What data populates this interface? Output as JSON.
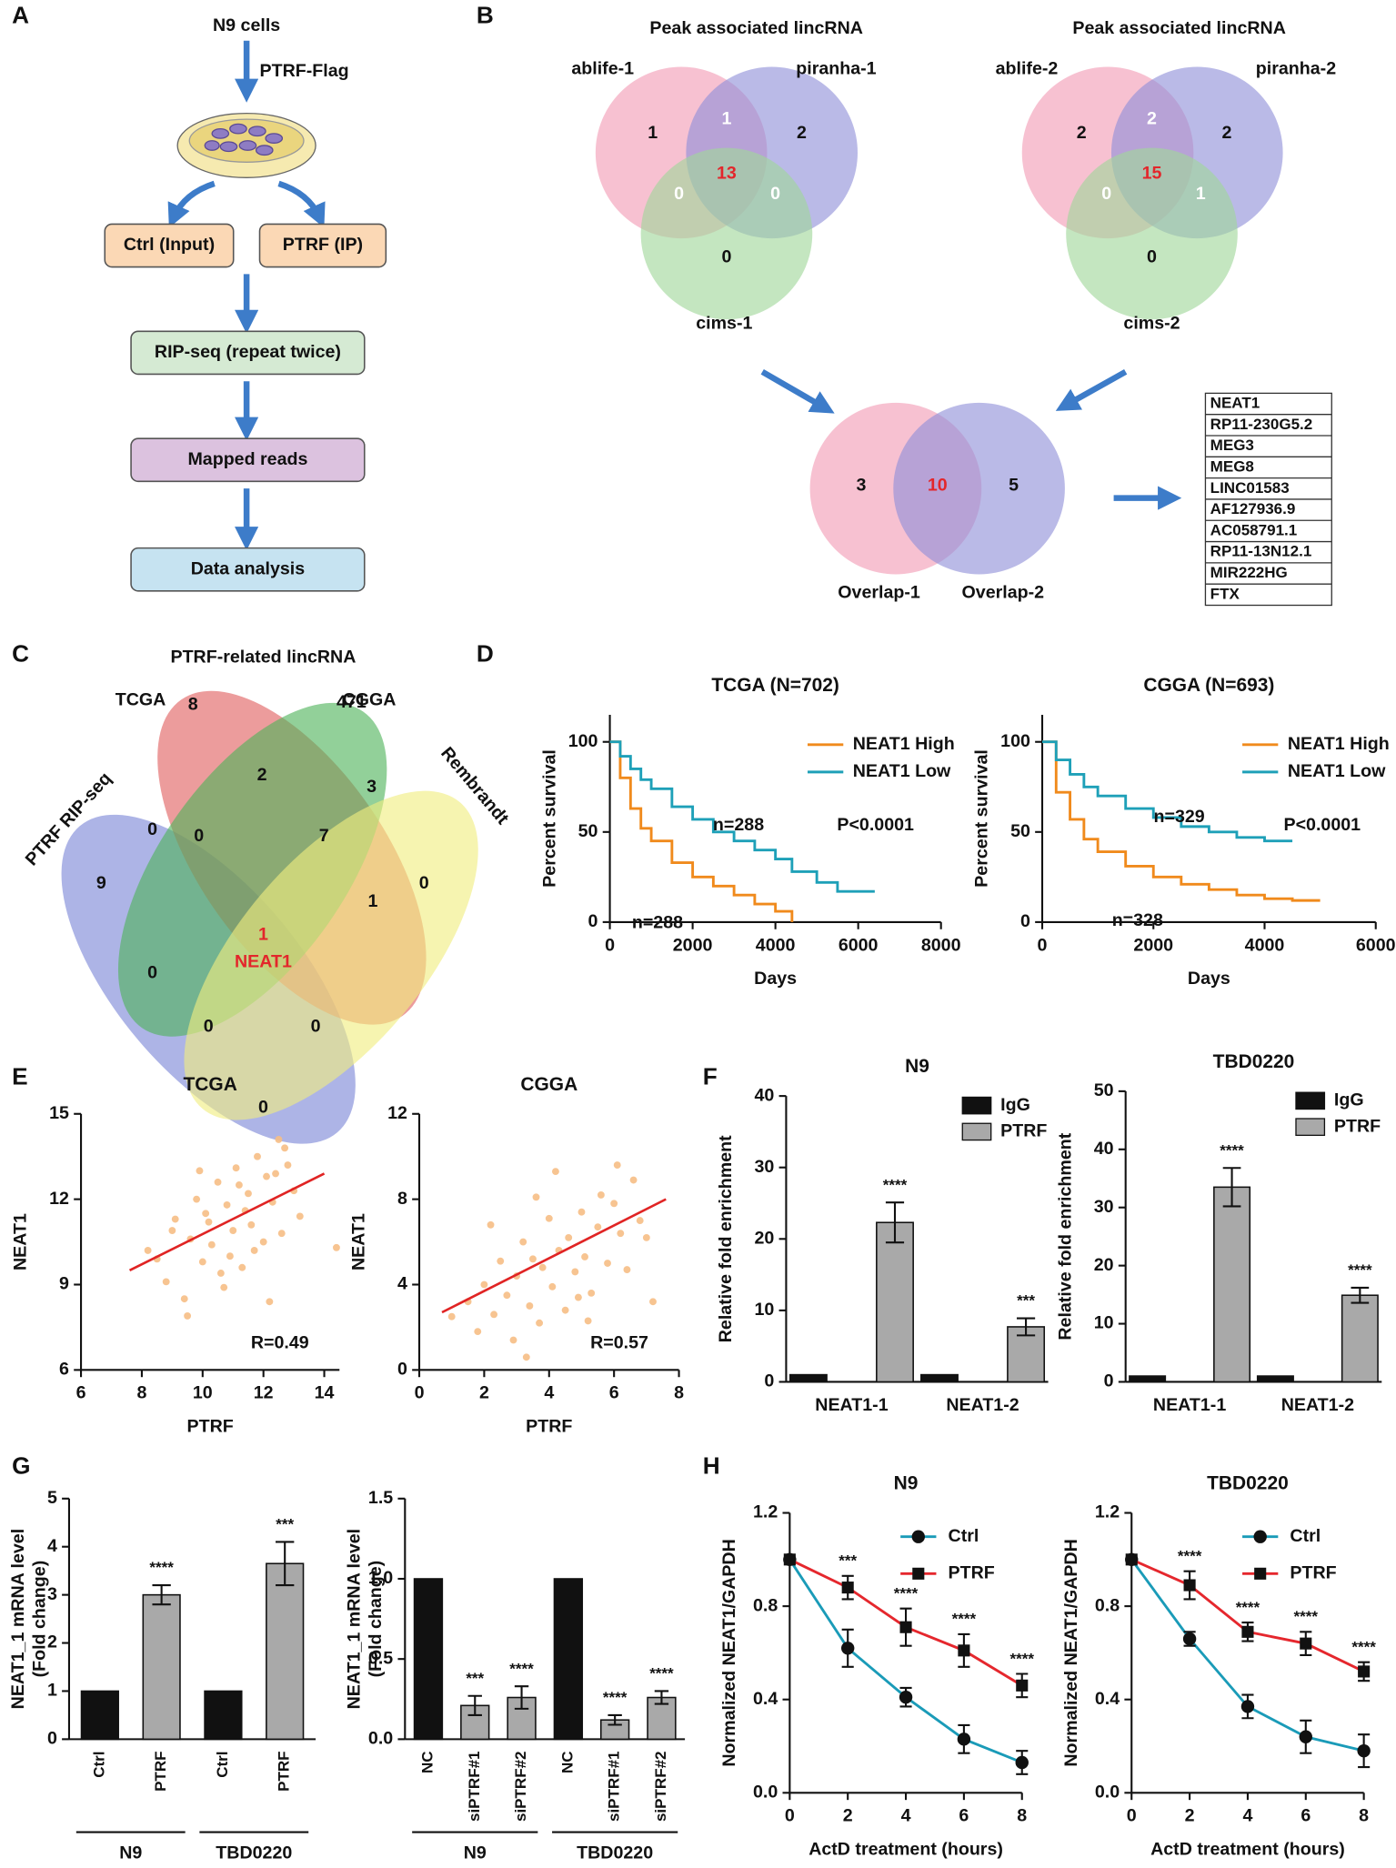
{
  "panel_labels": [
    "A",
    "B",
    "C",
    "D",
    "E",
    "F",
    "G",
    "H"
  ],
  "flowchart": {
    "start": "N9 cells",
    "arrow_label": "PTRF-Flag",
    "boxes": [
      "Ctrl (Input)",
      "PTRF (IP)",
      "RIP-seq (repeat twice)",
      "Mapped reads",
      "Data analysis"
    ]
  },
  "venn_b": [
    {
      "title": "Peak associated  lincRNA",
      "sets": [
        "ablife-1",
        "piranha-1",
        "cims-1"
      ],
      "regions": [
        1,
        2,
        0,
        1,
        0,
        0,
        13
      ]
    },
    {
      "title": "Peak associated  lincRNA",
      "sets": [
        "ablife-2",
        "piranha-2",
        "cims-2"
      ],
      "regions": [
        2,
        2,
        0,
        2,
        0,
        1,
        15
      ]
    }
  ],
  "venn_overlap": {
    "sets": [
      "Overlap-1",
      "Overlap-2"
    ],
    "regions": [
      3,
      10,
      5
    ]
  },
  "gene_list": [
    "NEAT1",
    "RP11-230G5.2",
    "MEG3",
    "MEG8",
    "LINC01583",
    "AF127936.9",
    "AC058791.1",
    "RP11-13N12.1",
    "MIR222HG",
    "FTX"
  ],
  "venn_c": {
    "title": "PTRF-related lincRNA",
    "sets": [
      "TCGA",
      "CGGA",
      "PTRF RIP-seq",
      "Rembrandt"
    ],
    "regions": [
      8,
      471,
      9,
      0,
      0,
      2,
      3,
      0,
      7,
      0,
      1,
      1,
      0,
      0,
      0
    ],
    "center_label": "NEAT1"
  },
  "chart_data": [
    {
      "type": "line",
      "step": true,
      "title": "TCGA (N=702)",
      "xlabel": "Days",
      "ylabel": "Percent survival",
      "x": [
        0,
        250,
        500,
        750,
        1000,
        1500,
        2000,
        2500,
        3000,
        3500,
        4000,
        4400,
        5000,
        5500,
        6000,
        6400
      ],
      "series": [
        {
          "name": "NEAT1 High",
          "color": "#f08a1c",
          "values": [
            100,
            80,
            63,
            52,
            45,
            33,
            25,
            20,
            15,
            10,
            6,
            0,
            null,
            null,
            null,
            null
          ]
        },
        {
          "name": "NEAT1 Low",
          "color": "#1ea0b8",
          "values": [
            100,
            92,
            85,
            79,
            74,
            64,
            57,
            50,
            45,
            40,
            35,
            28,
            22,
            17,
            17,
            17
          ]
        }
      ],
      "annotations": [
        "n=288",
        "n=288",
        "P<0.0001"
      ],
      "xlim": [
        0,
        8000
      ],
      "xticks": [
        0,
        2000,
        4000,
        6000,
        8000
      ],
      "ylim": [
        0,
        115
      ],
      "yticks": [
        0,
        50,
        100
      ],
      "legend": "upper right"
    },
    {
      "type": "line",
      "step": true,
      "title": "CGGA (N=693)",
      "xlabel": "Days",
      "ylabel": "Percent survival",
      "x": [
        0,
        250,
        500,
        750,
        1000,
        1500,
        2000,
        2500,
        3000,
        3500,
        4000,
        4500,
        5000
      ],
      "series": [
        {
          "name": "NEAT1 High",
          "color": "#f08a1c",
          "values": [
            100,
            72,
            57,
            46,
            39,
            31,
            25,
            21,
            18,
            15,
            13,
            12,
            12
          ]
        },
        {
          "name": "NEAT1 Low",
          "color": "#1ea0b8",
          "values": [
            100,
            90,
            82,
            75,
            70,
            63,
            58,
            53,
            50,
            47,
            45,
            45,
            null
          ]
        }
      ],
      "annotations": [
        "n=329",
        "n=328",
        "P<0.0001"
      ],
      "xlim": [
        0,
        6000
      ],
      "xticks": [
        0,
        2000,
        4000,
        6000
      ],
      "ylim": [
        0,
        115
      ],
      "yticks": [
        0,
        50,
        100
      ],
      "legend": "upper right"
    },
    {
      "type": "scatter",
      "title": "TCGA",
      "xlabel": "PTRF",
      "ylabel": "NEAT1",
      "color": "#f6be85",
      "x": [
        8.2,
        8.8,
        9.1,
        9.4,
        9.6,
        9.8,
        10,
        10.2,
        10.3,
        10.5,
        10.7,
        10.8,
        11,
        11.1,
        11.3,
        11.5,
        11.6,
        11.8,
        12,
        12.1,
        12.3,
        12.5,
        12.6,
        12.8,
        13,
        9,
        9.5,
        10.1,
        10.6,
        11.2,
        11.7,
        12.2,
        12.7,
        8.5,
        9.9,
        10.9,
        11.4,
        12.4,
        13.2,
        14.4
      ],
      "values": [
        10.2,
        9.1,
        11.3,
        8.5,
        10.6,
        12,
        9.8,
        11.2,
        10.4,
        12.6,
        8.9,
        11.8,
        10.9,
        13.1,
        9.6,
        12.2,
        11.1,
        13.5,
        10.5,
        12.8,
        11.9,
        14.1,
        10.8,
        13.2,
        12.3,
        10.9,
        7.9,
        11.5,
        9.4,
        12.5,
        10.2,
        8.4,
        13.8,
        9.9,
        13,
        10,
        11.6,
        12.9,
        11.4,
        10.3
      ],
      "fit_line": {
        "x": [
          7.6,
          14
        ],
        "values": [
          9.5,
          12.9
        ],
        "color": "#e02424"
      },
      "annotation": "R=0.49",
      "xlim": [
        6,
        14.5
      ],
      "xticks": [
        6,
        8,
        10,
        12,
        14
      ],
      "ylim": [
        6,
        15
      ],
      "yticks": [
        6,
        9,
        12,
        15
      ]
    },
    {
      "type": "scatter",
      "title": "CGGA",
      "xlabel": "PTRF",
      "ylabel": "NEAT1",
      "color": "#f6be85",
      "x": [
        1,
        1.5,
        1.8,
        2,
        2.3,
        2.5,
        2.7,
        2.9,
        3,
        3.2,
        3.4,
        3.5,
        3.7,
        3.8,
        4,
        4.1,
        4.3,
        4.5,
        4.6,
        4.8,
        5,
        5.1,
        5.3,
        5.5,
        5.6,
        5.8,
        6,
        6.2,
        6.4,
        6.6,
        6.8,
        7,
        2.2,
        3.3,
        4.2,
        5.2,
        6.1,
        7.2,
        3.6,
        4.9
      ],
      "values": [
        2.5,
        3.2,
        1.8,
        4,
        2.6,
        5.1,
        3.5,
        1.4,
        4.4,
        6,
        3,
        5.2,
        2.2,
        4.8,
        7.1,
        3.9,
        5.6,
        2.8,
        6.2,
        4.6,
        7.4,
        5.3,
        3.6,
        6.7,
        8.2,
        5,
        7.8,
        6.4,
        4.7,
        8.9,
        7,
        6.2,
        6.8,
        0.6,
        9.3,
        2.3,
        9.6,
        3.2,
        8.1,
        3.4
      ],
      "fit_line": {
        "x": [
          0.7,
          7.6
        ],
        "values": [
          2.7,
          8
        ],
        "color": "#e02424"
      },
      "annotation": "R=0.57",
      "xlim": [
        0,
        8
      ],
      "xticks": [
        0,
        2,
        4,
        6,
        8
      ],
      "ylim": [
        0,
        12
      ],
      "yticks": [
        0,
        4,
        8,
        12
      ]
    },
    {
      "type": "bar",
      "title": "N9",
      "ylabel": "Relative fold enrichment",
      "categories": [
        "NEAT1-1",
        "NEAT1-2"
      ],
      "series": [
        {
          "name": "IgG",
          "color": "#111111",
          "values": [
            1,
            1
          ]
        },
        {
          "name": "PTRF",
          "color": "#a9a9a9",
          "values": [
            22.3,
            7.7
          ],
          "errors": [
            2.8,
            1.2
          ],
          "significance": [
            "****",
            "***"
          ]
        }
      ],
      "ylim": [
        0,
        40
      ],
      "yticks": [
        0,
        10,
        20,
        30,
        40
      ],
      "legend": "upper right"
    },
    {
      "type": "bar",
      "title": "TBD0220",
      "ylabel": "Relative fold enrichment",
      "categories": [
        "NEAT1-1",
        "NEAT1-2"
      ],
      "series": [
        {
          "name": "IgG",
          "color": "#111111",
          "values": [
            1,
            1
          ]
        },
        {
          "name": "PTRF",
          "color": "#a9a9a9",
          "values": [
            33.5,
            14.9
          ],
          "errors": [
            3.3,
            1.3
          ],
          "significance": [
            "****",
            "****"
          ]
        }
      ],
      "ylim": [
        0,
        50
      ],
      "yticks": [
        0,
        10,
        20,
        30,
        40,
        50
      ],
      "legend": "upper right"
    },
    {
      "type": "bar",
      "ylabel": [
        "NEAT1_1 mRNA level",
        "(Fold change)"
      ],
      "categories": [
        "Ctrl",
        "PTRF",
        "Ctrl",
        "PTRF"
      ],
      "group_labels": [
        "N9",
        "TBD0220"
      ],
      "values": [
        1,
        3,
        1,
        3.65
      ],
      "errors": [
        0,
        0.2,
        0,
        0.45
      ],
      "significance": [
        null,
        "****",
        null,
        "***"
      ],
      "colors": [
        "#111111",
        "#a9a9a9",
        "#111111",
        "#a9a9a9"
      ],
      "ylim": [
        0,
        5
      ],
      "yticks": [
        0,
        1,
        2,
        3,
        4,
        5
      ]
    },
    {
      "type": "bar",
      "ylabel": [
        "NEAT1_1 mRNA level",
        "(Fold change)"
      ],
      "categories": [
        "NC",
        "siPTRF#1",
        "siPTRF#2",
        "NC",
        "siPTRF#1",
        "siPTRF#2"
      ],
      "group_labels": [
        "N9",
        "TBD0220"
      ],
      "values": [
        1,
        0.21,
        0.26,
        1,
        0.12,
        0.26
      ],
      "errors": [
        0,
        0.06,
        0.07,
        0,
        0.03,
        0.04
      ],
      "significance": [
        null,
        "***",
        "****",
        null,
        "****",
        "****"
      ],
      "colors": [
        "#111111",
        "#a9a9a9",
        "#a9a9a9",
        "#111111",
        "#a9a9a9",
        "#a9a9a9"
      ],
      "ylim": [
        0,
        1.5
      ],
      "yticks": [
        {
          "value": 0,
          "label": "0.0"
        },
        0.5,
        {
          "value": 1,
          "label": "1.0"
        },
        1.5
      ]
    },
    {
      "type": "line",
      "title": "N9",
      "xlabel": "ActD treatment (hours)",
      "ylabel": "Normalized NEAT1/GAPDH",
      "x": [
        0,
        2,
        4,
        6,
        8
      ],
      "marker_color": "#111111",
      "series": [
        {
          "name": "Ctrl",
          "color": "#1a9bb8",
          "marker": "circle",
          "values": [
            1,
            0.62,
            0.41,
            0.23,
            0.13
          ],
          "errors": [
            0,
            0.08,
            0.04,
            0.06,
            0.05
          ]
        },
        {
          "name": "PTRF",
          "color": "#e5272d",
          "marker": "square",
          "values": [
            1,
            0.88,
            0.71,
            0.61,
            0.46
          ],
          "errors": [
            0,
            0.05,
            0.08,
            0.07,
            0.05
          ],
          "significance": [
            null,
            "***",
            "****",
            "****",
            "****"
          ]
        }
      ],
      "xlim": [
        0,
        8
      ],
      "xticks": [
        0,
        2,
        4,
        6,
        8
      ],
      "ylim": [
        0,
        1.2
      ],
      "yticks": [
        {
          "value": 0,
          "label": "0.0"
        },
        0.4,
        0.8,
        1.2
      ],
      "legend": "upper right"
    },
    {
      "type": "line",
      "title": "TBD0220",
      "xlabel": "ActD treatment (hours)",
      "ylabel": "Normalized NEAT1/GAPDH",
      "x": [
        0,
        2,
        4,
        6,
        8
      ],
      "marker_color": "#111111",
      "series": [
        {
          "name": "Ctrl",
          "color": "#1a9bb8",
          "marker": "circle",
          "values": [
            1,
            0.66,
            0.37,
            0.24,
            0.18
          ],
          "errors": [
            0,
            0.03,
            0.05,
            0.07,
            0.07
          ]
        },
        {
          "name": "PTRF",
          "color": "#e5272d",
          "marker": "square",
          "values": [
            1,
            0.89,
            0.69,
            0.64,
            0.52
          ],
          "errors": [
            0,
            0.06,
            0.04,
            0.05,
            0.04
          ],
          "significance": [
            null,
            "****",
            "****",
            "****",
            "****"
          ]
        }
      ],
      "xlim": [
        0,
        8
      ],
      "xticks": [
        0,
        2,
        4,
        6,
        8
      ],
      "ylim": [
        0,
        1.2
      ],
      "yticks": [
        {
          "value": 0,
          "label": "0.0"
        },
        0.4,
        0.8,
        1.2
      ],
      "legend": "upper right"
    }
  ]
}
